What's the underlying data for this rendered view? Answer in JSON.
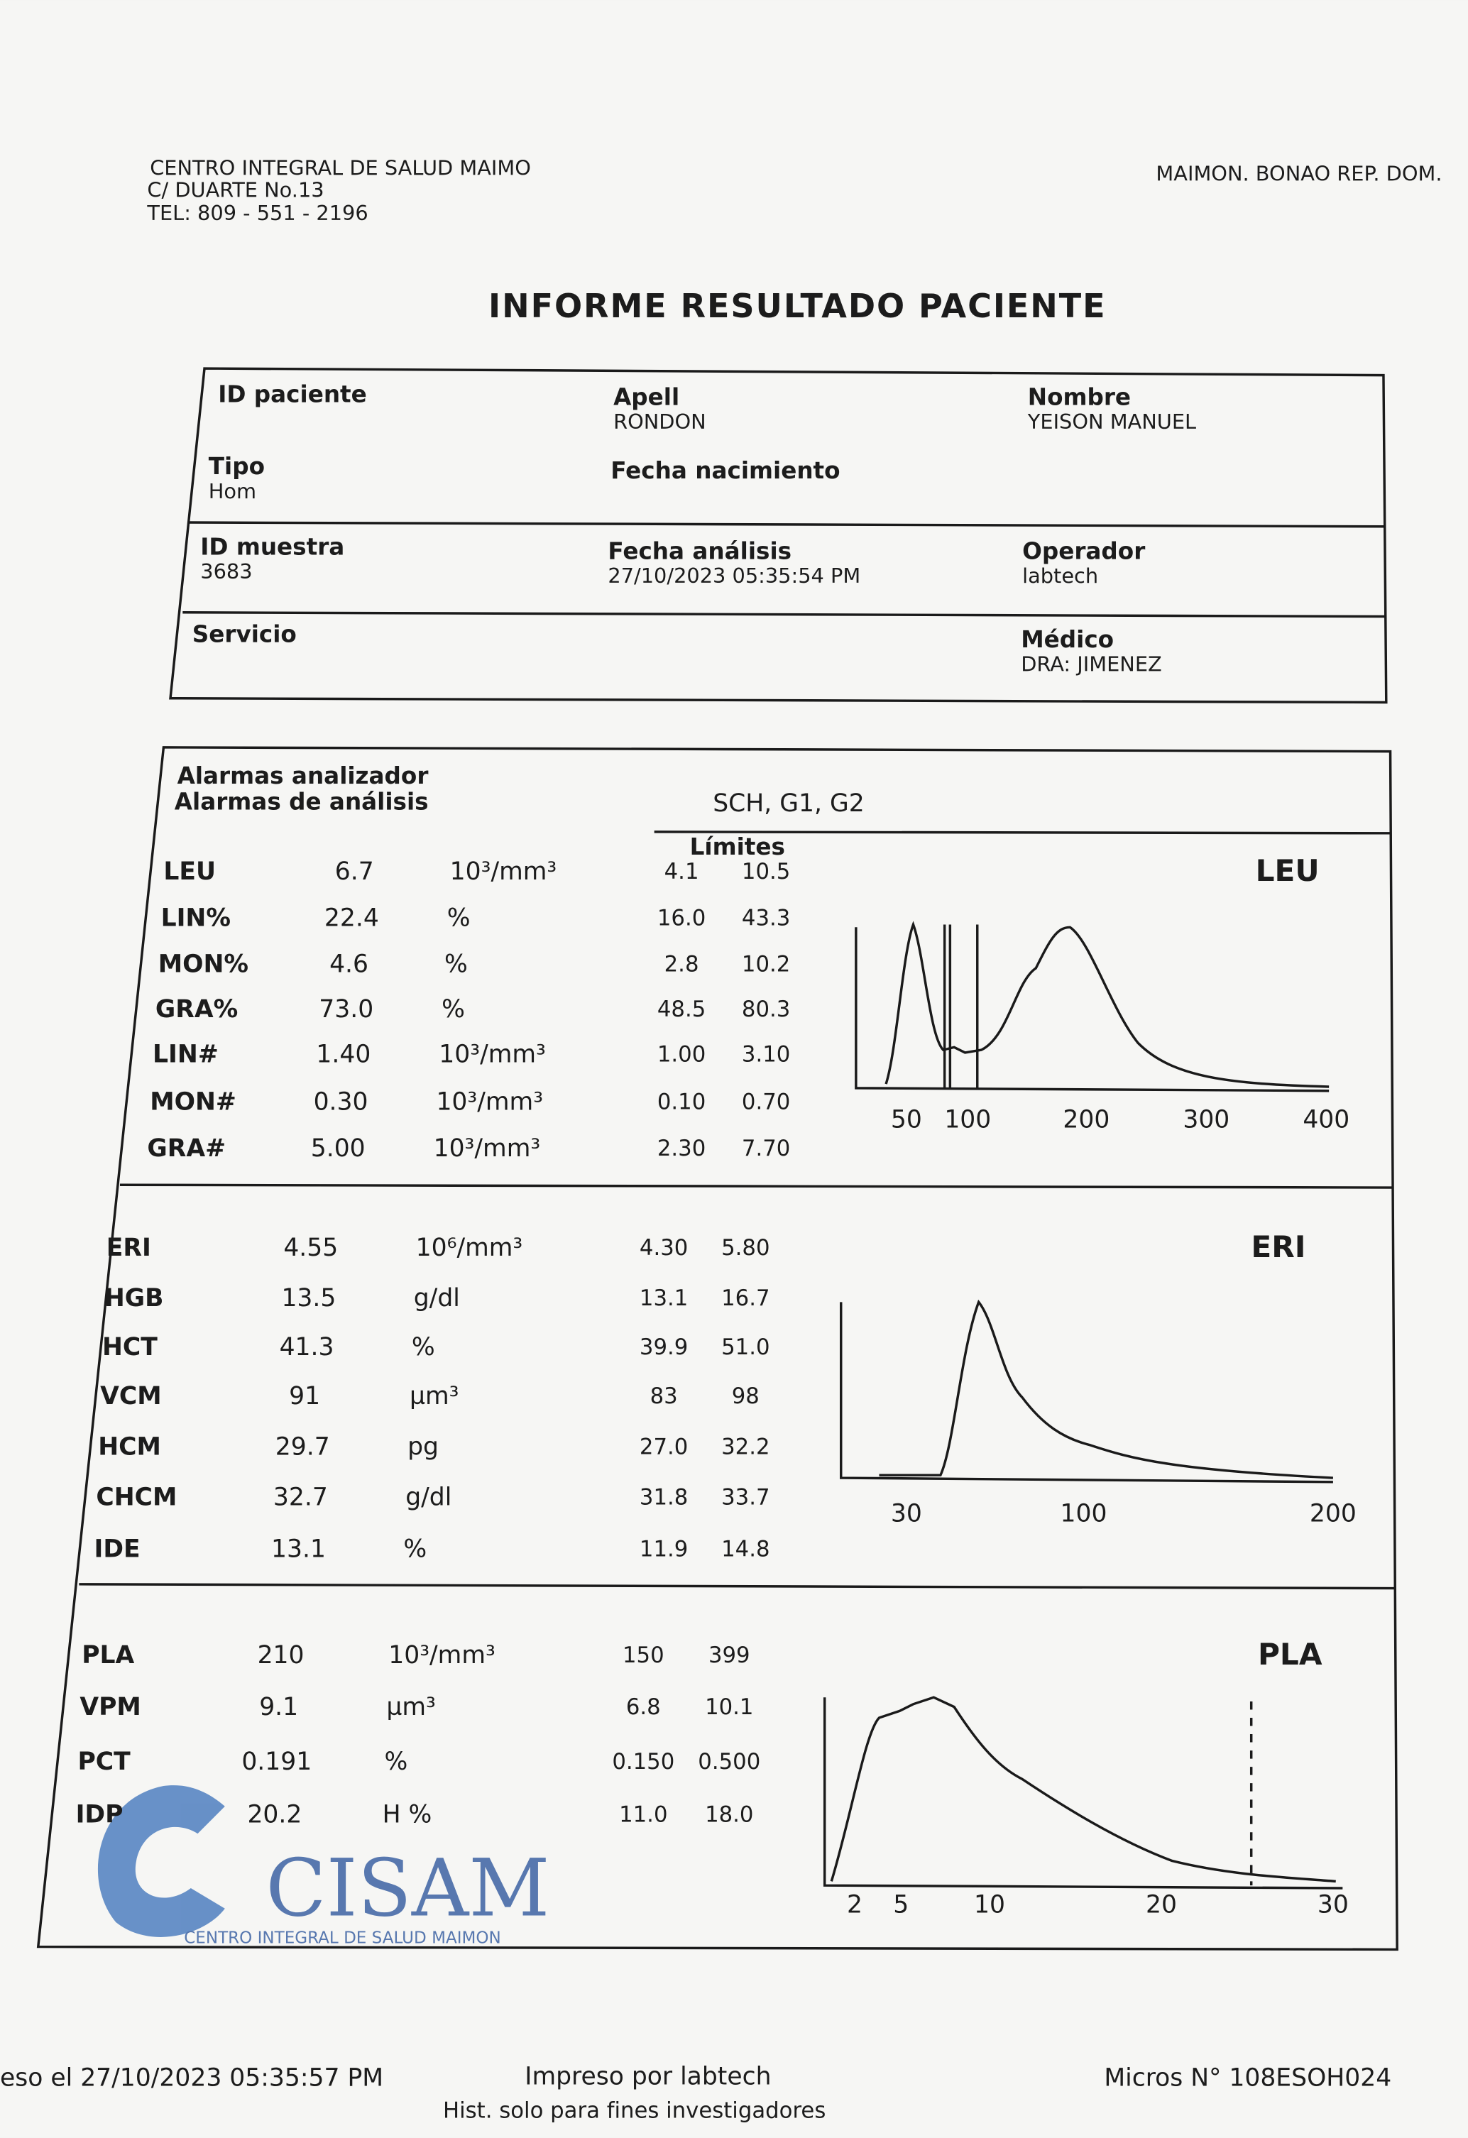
{
  "header": {
    "name": "CENTRO INTEGRAL DE SALUD MAIMO",
    "address": "C/ DUARTE No.13",
    "tel": "TEL: 809 - 551 - 2196",
    "location": "MAIMON. BONAO REP. DOM."
  },
  "title": "INFORME RESULTADO PACIENTE",
  "patient": [
    {
      "label": "ID paciente"
    },
    {
      "label": "Apell",
      "value": "RONDON"
    },
    {
      "label": "Nombre",
      "value": "YEISON MANUEL"
    },
    {
      "label": "Tipo",
      "value": "Hom"
    },
    {
      "label": "Fecha nacimiento"
    },
    {
      "label": "ID muestra",
      "value": "3683"
    },
    {
      "label": "Fecha análisis",
      "value": "27/10/2023 05:35:54 PM"
    },
    {
      "label": "Operador",
      "value": "labtech"
    },
    {
      "label": "Servicio"
    },
    {
      "label": "Médico",
      "value": "DRA: JIMENEZ"
    }
  ],
  "alarms": {
    "analyzer": "Alarmas analizador",
    "analysis": "Alarmas de análisis",
    "flags": "SCH, G1, G2",
    "limits": "Límites"
  },
  "sections": [
    {
      "histogram": "LEU",
      "axis": [
        "50",
        "100",
        "200",
        "300",
        "400"
      ],
      "rows": [
        [
          "LEU",
          "6.7",
          "10³/mm³",
          "4.1",
          "10.5"
        ],
        [
          "LIN%",
          "22.4",
          "%",
          "16.0",
          "43.3"
        ],
        [
          "MON%",
          "4.6",
          "%",
          "2.8",
          "10.2"
        ],
        [
          "GRA%",
          "73.0",
          "%",
          "48.5",
          "80.3"
        ],
        [
          "LIN#",
          "1.40",
          "10³/mm³",
          "1.00",
          "3.10"
        ],
        [
          "MON#",
          "0.30",
          "10³/mm³",
          "0.10",
          "0.70"
        ],
        [
          "GRA#",
          "5.00",
          "10³/mm³",
          "2.30",
          "7.70"
        ]
      ]
    },
    {
      "histogram": "ERI",
      "axis": [
        "30",
        "100",
        "200"
      ],
      "rows": [
        [
          "ERI",
          "4.55",
          "10⁶/mm³",
          "4.30",
          "5.80"
        ],
        [
          "HGB",
          "13.5",
          "g/dl",
          "13.1",
          "16.7"
        ],
        [
          "HCT",
          "41.3",
          "%",
          "39.9",
          "51.0"
        ],
        [
          "VCM",
          "91",
          "µm³",
          "83",
          "98"
        ],
        [
          "HCM",
          "29.7",
          "pg",
          "27.0",
          "32.2"
        ],
        [
          "CHCM",
          "32.7",
          "g/dl",
          "31.8",
          "33.7"
        ],
        [
          "IDE",
          "13.1",
          "%",
          "11.9",
          "14.8"
        ]
      ]
    },
    {
      "histogram": "PLA",
      "axis": [
        "2",
        "5",
        "10",
        "20",
        "30"
      ],
      "rows": [
        [
          "PLA",
          "210",
          "10³/mm³",
          "150",
          "399"
        ],
        [
          "VPM",
          "9.1",
          "µm³",
          "6.8",
          "10.1"
        ],
        [
          "PCT",
          "0.191",
          "%",
          "0.150",
          "0.500"
        ],
        [
          "IDP",
          "20.2",
          "H %",
          "11.0",
          "18.0"
        ]
      ]
    }
  ],
  "stamp": {
    "logo": "CISAM",
    "center": "CENTRO INTEGRAL DE SALUD MAIMON"
  },
  "footer": {
    "printed_at": "eso el 27/10/2023 05:35:57 PM",
    "printed_by": "Impreso por labtech",
    "serial": "Micros N° 108ESOH024",
    "note": "Hist. solo para fines investigadores"
  }
}
